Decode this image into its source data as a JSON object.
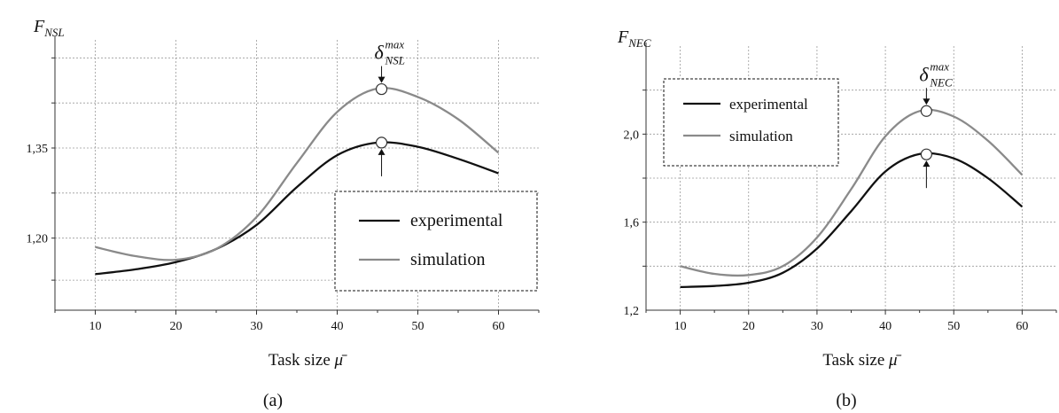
{
  "chart_data": [
    {
      "panel_label": "(a)",
      "type": "line",
      "ylabel_main": "F",
      "ylabel_sub": "NSL",
      "xlabel_main": "Task size ",
      "xlabel_symbol": "μ̄",
      "xlim": [
        5,
        65
      ],
      "ylim": [
        1.08,
        1.53
      ],
      "x_ticks": [
        10,
        20,
        30,
        40,
        50,
        60
      ],
      "x_tick_labels": [
        "10",
        "20",
        "30",
        "40",
        "50",
        "60"
      ],
      "y_grid": [
        1.13,
        1.2,
        1.275,
        1.35,
        1.425,
        1.5
      ],
      "y_tick_labels": [
        {
          "value": 1.35,
          "label": "1,35"
        },
        {
          "value": 1.2,
          "label": "1,20"
        }
      ],
      "grid": true,
      "legend_position": "bottom-right",
      "series": [
        {
          "name": "experimental",
          "color": "#111111",
          "points": [
            [
              10,
              1.14
            ],
            [
              15,
              1.148
            ],
            [
              20,
              1.16
            ],
            [
              25,
              1.182
            ],
            [
              30,
              1.222
            ],
            [
              35,
              1.285
            ],
            [
              40,
              1.338
            ],
            [
              45,
              1.359
            ],
            [
              50,
              1.352
            ],
            [
              55,
              1.332
            ],
            [
              60,
              1.308
            ]
          ]
        },
        {
          "name": "simulation",
          "color": "#8a8a8a",
          "points": [
            [
              10,
              1.185
            ],
            [
              15,
              1.17
            ],
            [
              20,
              1.164
            ],
            [
              25,
              1.182
            ],
            [
              30,
              1.235
            ],
            [
              35,
              1.325
            ],
            [
              40,
              1.41
            ],
            [
              45,
              1.449
            ],
            [
              50,
              1.435
            ],
            [
              55,
              1.398
            ],
            [
              60,
              1.342
            ]
          ]
        }
      ],
      "markers": [
        {
          "x": 45.5,
          "y": 1.448,
          "annotation_main": "δ",
          "annotation_sup": "max",
          "annotation_sub": "NSL",
          "arrow": "from-above"
        },
        {
          "x": 45.5,
          "y": 1.359,
          "arrow": "from-below"
        }
      ]
    },
    {
      "panel_label": "(b)",
      "type": "line",
      "ylabel_main": "F",
      "ylabel_sub": "NEC",
      "xlabel_main": "Task size ",
      "xlabel_symbol": "μ̄",
      "xlim": [
        5,
        65
      ],
      "ylim": [
        1.2,
        2.4
      ],
      "x_ticks": [
        10,
        20,
        30,
        40,
        50,
        60
      ],
      "x_tick_labels": [
        "10",
        "20",
        "30",
        "40",
        "50",
        "60"
      ],
      "y_grid": [
        1.4,
        1.6,
        1.8,
        2.0,
        2.2
      ],
      "y_tick_labels": [
        {
          "value": 2.0,
          "label": "2,0"
        },
        {
          "value": 1.6,
          "label": "1,6"
        },
        {
          "value": 1.2,
          "label": "1,2"
        }
      ],
      "grid": true,
      "legend_position": "top-left",
      "series": [
        {
          "name": "experimental",
          "color": "#111111",
          "points": [
            [
              10,
              1.305
            ],
            [
              15,
              1.31
            ],
            [
              20,
              1.325
            ],
            [
              25,
              1.37
            ],
            [
              30,
              1.48
            ],
            [
              35,
              1.65
            ],
            [
              40,
              1.83
            ],
            [
              45,
              1.91
            ],
            [
              50,
              1.89
            ],
            [
              55,
              1.8
            ],
            [
              60,
              1.67
            ]
          ]
        },
        {
          "name": "simulation",
          "color": "#8a8a8a",
          "points": [
            [
              10,
              1.4
            ],
            [
              15,
              1.365
            ],
            [
              20,
              1.36
            ],
            [
              25,
              1.4
            ],
            [
              30,
              1.53
            ],
            [
              35,
              1.75
            ],
            [
              40,
              1.99
            ],
            [
              45,
              2.105
            ],
            [
              50,
              2.08
            ],
            [
              55,
              1.97
            ],
            [
              60,
              1.815
            ]
          ]
        }
      ],
      "markers": [
        {
          "x": 46,
          "y": 2.105,
          "annotation_main": "δ",
          "annotation_sup": "max",
          "annotation_sub": "NEC",
          "arrow": "from-above"
        },
        {
          "x": 46,
          "y": 1.908,
          "arrow": "from-below"
        }
      ]
    }
  ]
}
